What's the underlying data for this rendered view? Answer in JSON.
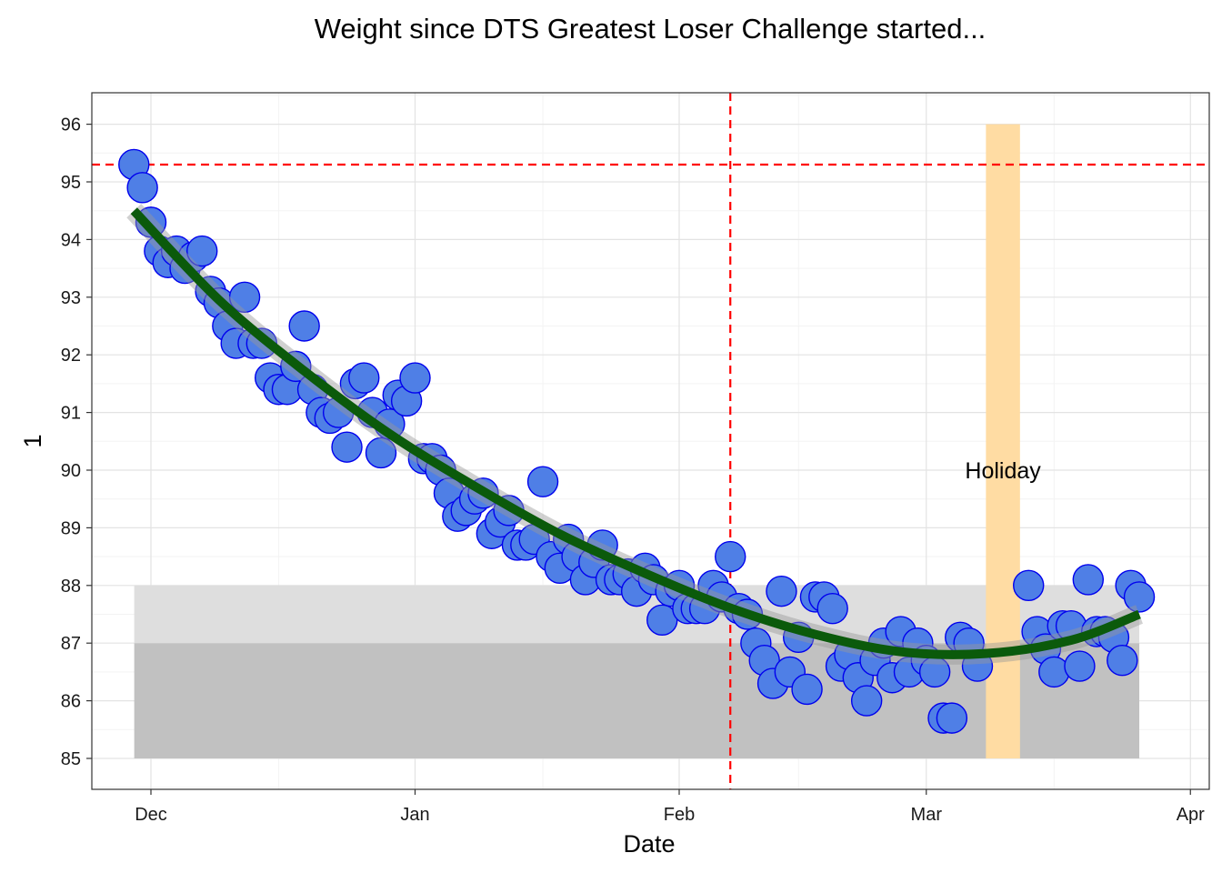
{
  "chart_data": {
    "type": "scatter",
    "title": "Weight since DTS Greatest Loser Challenge started...",
    "xlabel": "Date",
    "ylabel": "1",
    "x_ticks": [
      "Dec",
      "Jan",
      "Feb",
      "Mar",
      "Apr"
    ],
    "y_ticks": [
      "85",
      "86",
      "87",
      "88",
      "89",
      "90",
      "91",
      "92",
      "93",
      "94",
      "95",
      "96"
    ],
    "ylim": [
      84.5,
      96.5
    ],
    "grid": true,
    "colors": {
      "points_fill": "#4f7fe6",
      "points_stroke": "#0000ee",
      "trend": "#0b5a0b",
      "ref_lines": "#ff0000",
      "holiday_band": "#ffdca3",
      "band_light": "#dedede",
      "band_dark": "#c1c1c1"
    },
    "bands": [
      {
        "ymin": 85,
        "ymax": 87,
        "color": "#c1c1c1",
        "x_start": "2015-11-30",
        "x_end": "2016-03-26"
      },
      {
        "ymin": 87,
        "ymax": 88,
        "color": "#dedede",
        "x_start": "2015-11-30",
        "x_end": "2016-03-26"
      }
    ],
    "holiday": {
      "label": "Holiday",
      "x_start": "2016-03-08",
      "x_end": "2016-03-12",
      "ymin": 85,
      "ymax": 96
    },
    "hline": 95.3,
    "vline": "2016-02-07",
    "series": [
      {
        "x": [
          "2015-11-29",
          "2015-11-30",
          "2015-12-01",
          "2015-12-02",
          "2015-12-03",
          "2015-12-04",
          "2015-12-05",
          "2015-12-06",
          "2015-12-07",
          "2015-12-08",
          "2015-12-09",
          "2015-12-10",
          "2015-12-11",
          "2015-12-12",
          "2015-12-13",
          "2015-12-14",
          "2015-12-15",
          "2015-12-16",
          "2015-12-17",
          "2015-12-18",
          "2015-12-19",
          "2015-12-20",
          "2015-12-21",
          "2015-12-22",
          "2015-12-23",
          "2015-12-24",
          "2015-12-25",
          "2015-12-26",
          "2015-12-27",
          "2015-12-28",
          "2015-12-29",
          "2015-12-30",
          "2015-12-31",
          "2016-01-01",
          "2016-01-02",
          "2016-01-03",
          "2016-01-04",
          "2016-01-05",
          "2016-01-06",
          "2016-01-07",
          "2016-01-08",
          "2016-01-09",
          "2016-01-10",
          "2016-01-11",
          "2016-01-12",
          "2016-01-13",
          "2016-01-14",
          "2016-01-15",
          "2016-01-16",
          "2016-01-17",
          "2016-01-18",
          "2016-01-19",
          "2016-01-20",
          "2016-01-21",
          "2016-01-22",
          "2016-01-23",
          "2016-01-24",
          "2016-01-25",
          "2016-01-26",
          "2016-01-27",
          "2016-01-28",
          "2016-01-29",
          "2016-01-30",
          "2016-01-31",
          "2016-02-01",
          "2016-02-02",
          "2016-02-03",
          "2016-02-04",
          "2016-02-05",
          "2016-02-06",
          "2016-02-07",
          "2016-02-08",
          "2016-02-09",
          "2016-02-10",
          "2016-02-11",
          "2016-02-12",
          "2016-02-13",
          "2016-02-14",
          "2016-02-15",
          "2016-02-16",
          "2016-02-17",
          "2016-02-18",
          "2016-02-19",
          "2016-02-20",
          "2016-02-21",
          "2016-02-22",
          "2016-02-23",
          "2016-02-24",
          "2016-02-25",
          "2016-02-26",
          "2016-02-27",
          "2016-02-28",
          "2016-02-29",
          "2016-03-01",
          "2016-03-02",
          "2016-03-03",
          "2016-03-04",
          "2016-03-05",
          "2016-03-06",
          "2016-03-07",
          "2016-03-13",
          "2016-03-14",
          "2016-03-15",
          "2016-03-16",
          "2016-03-17",
          "2016-03-18",
          "2016-03-19",
          "2016-03-20",
          "2016-03-21",
          "2016-03-22",
          "2016-03-23",
          "2016-03-24",
          "2016-03-25",
          "2016-03-26"
        ],
        "y": [
          95.3,
          94.9,
          94.3,
          93.8,
          93.6,
          93.8,
          93.5,
          93.7,
          93.8,
          93.1,
          92.9,
          92.5,
          92.2,
          93.0,
          92.2,
          92.2,
          91.6,
          91.4,
          91.4,
          91.8,
          92.5,
          91.4,
          91.0,
          90.9,
          91.0,
          90.4,
          91.5,
          91.6,
          91.0,
          90.3,
          90.8,
          91.3,
          91.2,
          91.6,
          90.2,
          90.2,
          90.0,
          89.6,
          89.2,
          89.3,
          89.5,
          89.6,
          88.9,
          89.1,
          89.3,
          88.7,
          88.7,
          88.8,
          89.8,
          88.5,
          88.3,
          88.8,
          88.5,
          88.1,
          88.4,
          88.7,
          88.1,
          88.1,
          88.2,
          87.9,
          88.3,
          88.1,
          87.4,
          87.9,
          88.0,
          87.6,
          87.6,
          87.6,
          88.0,
          87.8,
          88.5,
          87.6,
          87.5,
          87.0,
          86.7,
          86.3,
          87.9,
          86.5,
          87.1,
          86.2,
          87.8,
          87.8,
          87.6,
          86.6,
          86.8,
          86.4,
          86.0,
          86.7,
          87.0,
          86.4,
          87.2,
          86.5,
          87.0,
          86.7,
          86.5,
          85.7,
          85.7,
          87.1,
          87.0,
          86.6,
          88.0,
          87.2,
          86.9,
          86.5,
          87.3,
          87.3,
          86.6,
          88.1,
          87.2,
          87.2,
          87.1,
          86.7,
          88.0,
          87.8
        ]
      }
    ],
    "trend": {
      "type": "smooth",
      "x": [
        "2015-11-29",
        "2015-12-09",
        "2015-12-19",
        "2015-12-29",
        "2016-01-08",
        "2016-01-18",
        "2016-01-28",
        "2016-02-07",
        "2016-02-17",
        "2016-02-27",
        "2016-03-08",
        "2016-03-18",
        "2016-03-26"
      ],
      "y": [
        94.5,
        92.95,
        91.72,
        90.63,
        89.72,
        88.89,
        88.21,
        87.61,
        87.15,
        86.85,
        86.82,
        87.05,
        87.5
      ]
    }
  }
}
